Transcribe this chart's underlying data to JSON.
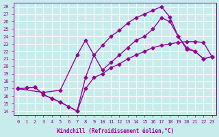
{
  "xlabel": "Windchill (Refroidissement éolien,°C)",
  "background_color": "#c8ecec",
  "line_color": "#990099",
  "marker": "D",
  "markersize": 2.5,
  "linewidth": 1.0,
  "xlim": [
    -0.5,
    23.5
  ],
  "ylim": [
    13.5,
    28.5
  ],
  "xticks": [
    0,
    1,
    2,
    3,
    4,
    5,
    6,
    7,
    8,
    9,
    10,
    11,
    12,
    13,
    14,
    15,
    16,
    17,
    18,
    19,
    20,
    21,
    22,
    23
  ],
  "yticks": [
    14,
    15,
    16,
    17,
    18,
    19,
    20,
    21,
    22,
    23,
    24,
    25,
    26,
    27,
    28
  ],
  "grid_color": "#ffffff",
  "series1_x": [
    0,
    1,
    2,
    3,
    4,
    5,
    6,
    7,
    8,
    9,
    10,
    11,
    12,
    13,
    14,
    15,
    16,
    17,
    18,
    19,
    20,
    21,
    22,
    23
  ],
  "series1_y": [
    17.0,
    17.1,
    17.2,
    16.2,
    15.7,
    15.2,
    14.6,
    14.0,
    18.5,
    21.5,
    22.8,
    24.0,
    24.8,
    25.8,
    26.5,
    27.0,
    27.5,
    28.0,
    26.6,
    24.0,
    22.5,
    22.0,
    21.0,
    21.3
  ],
  "series2_x": [
    0,
    3,
    5,
    7,
    8,
    10,
    11,
    12,
    13,
    14,
    15,
    16,
    17,
    18,
    19,
    20,
    21,
    22,
    23
  ],
  "series2_y": [
    17.0,
    16.5,
    16.8,
    21.5,
    23.5,
    19.5,
    20.5,
    21.5,
    22.5,
    23.5,
    24.0,
    25.0,
    26.5,
    26.0,
    24.0,
    22.3,
    22.0,
    21.0,
    21.3
  ],
  "series3_x": [
    0,
    1,
    2,
    3,
    4,
    5,
    6,
    7,
    8,
    9,
    10,
    11,
    12,
    13,
    14,
    15,
    16,
    17,
    18,
    19,
    20,
    21,
    22,
    23
  ],
  "series3_y": [
    17.0,
    17.1,
    17.2,
    16.2,
    15.7,
    15.2,
    14.6,
    14.0,
    17.0,
    18.5,
    19.0,
    19.8,
    20.3,
    21.0,
    21.5,
    22.0,
    22.5,
    22.8,
    23.0,
    23.2,
    23.3,
    23.3,
    23.2,
    21.3
  ]
}
